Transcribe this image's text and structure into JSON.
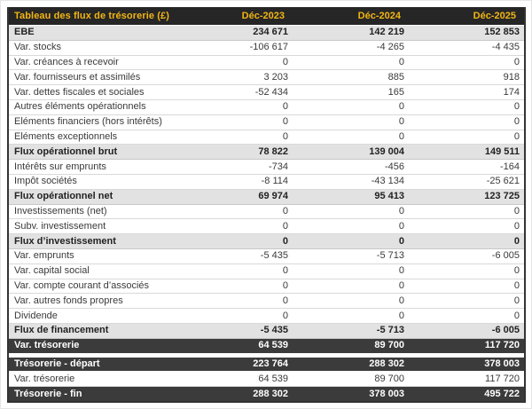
{
  "colors": {
    "header_bg": "#262626",
    "header_text": "#f2b513",
    "subtotal_bg": "#e2e2e2",
    "total_bg": "#3b3b3b",
    "total_text": "#ffffff",
    "row_border": "#d9d9d9",
    "outer_border": "#333333",
    "text": "#3a3a3a"
  },
  "chart_data": {
    "type": "table",
    "title": "Tableau des flux de trésorerie (£)",
    "columns": [
      "Déc-2023",
      "Déc-2024",
      "Déc-2025"
    ],
    "rows": [
      {
        "label": "EBE",
        "style": "subtotal",
        "values": [
          "234 671",
          "142 219",
          "152 853"
        ]
      },
      {
        "label": "Var. stocks",
        "style": "normal",
        "values": [
          "-106 617",
          "-4 265",
          "-4 435"
        ]
      },
      {
        "label": "Var. créances à recevoir",
        "style": "normal",
        "values": [
          "0",
          "0",
          "0"
        ]
      },
      {
        "label": "Var. fournisseurs et assimilés",
        "style": "normal",
        "values": [
          "3 203",
          "885",
          "918"
        ]
      },
      {
        "label": "Var. dettes fiscales et sociales",
        "style": "normal",
        "values": [
          "-52 434",
          "165",
          "174"
        ]
      },
      {
        "label": "Autres éléments opérationnels",
        "style": "normal",
        "values": [
          "0",
          "0",
          "0"
        ]
      },
      {
        "label": "Eléments financiers (hors intérêts)",
        "style": "normal",
        "values": [
          "0",
          "0",
          "0"
        ]
      },
      {
        "label": "Eléments exceptionnels",
        "style": "normal",
        "values": [
          "0",
          "0",
          "0"
        ]
      },
      {
        "label": "Flux opérationnel brut",
        "style": "subtotal",
        "values": [
          "78 822",
          "139 004",
          "149 511"
        ]
      },
      {
        "label": "Intérêts sur emprunts",
        "style": "normal",
        "values": [
          "-734",
          "-456",
          "-164"
        ]
      },
      {
        "label": "Impôt sociétés",
        "style": "normal",
        "values": [
          "-8 114",
          "-43 134",
          "-25 621"
        ]
      },
      {
        "label": "Flux opérationnel net",
        "style": "subtotal",
        "values": [
          "69 974",
          "95 413",
          "123 725"
        ]
      },
      {
        "label": "Investissements (net)",
        "style": "normal",
        "values": [
          "0",
          "0",
          "0"
        ]
      },
      {
        "label": "Subv. investissement",
        "style": "normal",
        "values": [
          "0",
          "0",
          "0"
        ]
      },
      {
        "label": "Flux d’investissement",
        "style": "subtotal",
        "values": [
          "0",
          "0",
          "0"
        ]
      },
      {
        "label": "Var. emprunts",
        "style": "normal",
        "values": [
          "-5 435",
          "-5 713",
          "-6 005"
        ]
      },
      {
        "label": "Var. capital social",
        "style": "normal",
        "values": [
          "0",
          "0",
          "0"
        ]
      },
      {
        "label": "Var. compte courant d’associés",
        "style": "normal",
        "values": [
          "0",
          "0",
          "0"
        ]
      },
      {
        "label": "Var. autres fonds propres",
        "style": "normal",
        "values": [
          "0",
          "0",
          "0"
        ]
      },
      {
        "label": "Dividende",
        "style": "normal",
        "values": [
          "0",
          "0",
          "0"
        ]
      },
      {
        "label": "Flux de financement",
        "style": "subtotal",
        "values": [
          "-5 435",
          "-5 713",
          "-6 005"
        ]
      },
      {
        "label": "Var. trésorerie",
        "style": "total",
        "values": [
          "64 539",
          "89 700",
          "117 720"
        ]
      },
      {
        "style": "spacer"
      },
      {
        "label": "Trésorerie - départ",
        "style": "total",
        "values": [
          "223 764",
          "288 302",
          "378 003"
        ]
      },
      {
        "label": "Var. trésorerie",
        "style": "normal",
        "values": [
          "64 539",
          "89 700",
          "117 720"
        ]
      },
      {
        "label": "Trésorerie - fin",
        "style": "total",
        "values": [
          "288 302",
          "378 003",
          "495 722"
        ]
      }
    ]
  }
}
